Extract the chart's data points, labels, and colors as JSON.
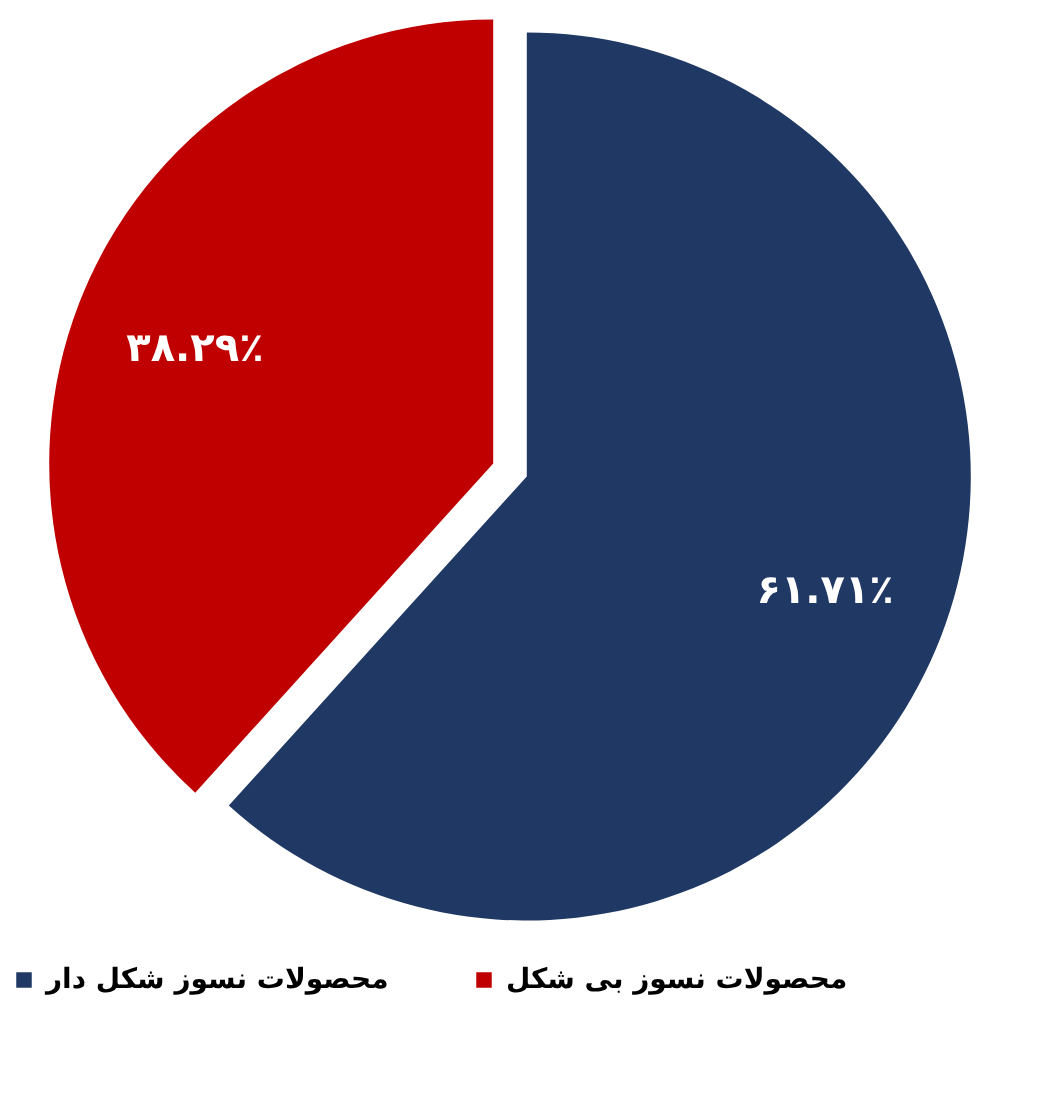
{
  "chart_data": {
    "type": "pie",
    "categories": [
      "محصولات نسوز شکل دار",
      "محصولات نسوز بی شکل"
    ],
    "values": [
      61.71,
      38.29
    ],
    "colors": [
      "#203864",
      "#c00000"
    ],
    "value_labels": [
      "۶۱.۷۱٪",
      "۳۸.۲۹٪"
    ],
    "legend": "bottom"
  }
}
